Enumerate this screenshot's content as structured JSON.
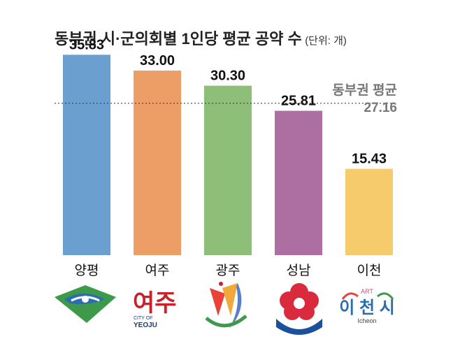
{
  "chart_data": {
    "type": "bar",
    "title": "동부권 시·군의회별 1인당 평균 공약 수",
    "unit_note": "(단위: 개)",
    "categories": [
      "양평",
      "여주",
      "광주",
      "성남",
      "이천"
    ],
    "values": [
      35.83,
      33.0,
      30.3,
      25.81,
      15.43
    ],
    "value_labels": [
      "35.83",
      "33.00",
      "30.30",
      "25.81",
      "15.43"
    ],
    "colors": [
      "#6a9fd0",
      "#ec9e66",
      "#8ebf79",
      "#ad6fa2",
      "#f5cb6b"
    ],
    "ylim": [
      0,
      40
    ],
    "grid": false,
    "reference_line": {
      "label": "동부권 평균",
      "value": 27.16,
      "value_label": "27.16",
      "style": "dotted"
    }
  },
  "logos": {
    "yeoju": {
      "name": "여주",
      "sub1": "CITY OF",
      "sub2": "YEOJU"
    },
    "icheon": {
      "art": "ART",
      "name": "이 천 시",
      "sub": "Icheon"
    }
  }
}
